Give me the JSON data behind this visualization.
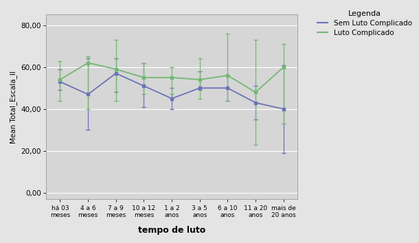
{
  "categories": [
    "há 03\nmeses",
    "4 a 6\nmeses",
    "7 a 9\nmeses",
    "10 a 12\nmeses",
    "1 a 2\nanos",
    "3 a 5\nanos",
    "6 a 10\nanos",
    "11 a 20\nanos",
    "mais de\n20 anos"
  ],
  "blue_means": [
    53,
    47,
    57,
    51,
    45,
    50,
    50,
    43,
    40
  ],
  "blue_upper_err": [
    6,
    17,
    7,
    11,
    5,
    8,
    6,
    8,
    21
  ],
  "blue_lower_err": [
    4,
    17,
    9,
    10,
    5,
    1,
    6,
    8,
    21
  ],
  "green_means": [
    54,
    62,
    59,
    55,
    55,
    54,
    56,
    48,
    60
  ],
  "green_upper_err": [
    9,
    3,
    14,
    7,
    5,
    10,
    20,
    25,
    11
  ],
  "green_lower_err": [
    10,
    22,
    15,
    8,
    8,
    9,
    12,
    25,
    27
  ],
  "blue_color": "#6b72b8",
  "green_color": "#72b872",
  "ylabel": "Mean Total_Escala_II",
  "xlabel": "tempo de luto",
  "ylim": [
    -3,
    85
  ],
  "yticks": [
    0,
    20,
    40,
    60,
    80
  ],
  "ytick_labels": [
    "0,00",
    "20,00",
    "40,00",
    "60,00",
    "80,00"
  ],
  "legend_title": "Legenda",
  "legend_blue": "Sem Luto Complicado",
  "legend_green": "Luto Complicado",
  "fig_bg_color": "#e4e4e4",
  "plot_bg_color": "#d6d6d6"
}
